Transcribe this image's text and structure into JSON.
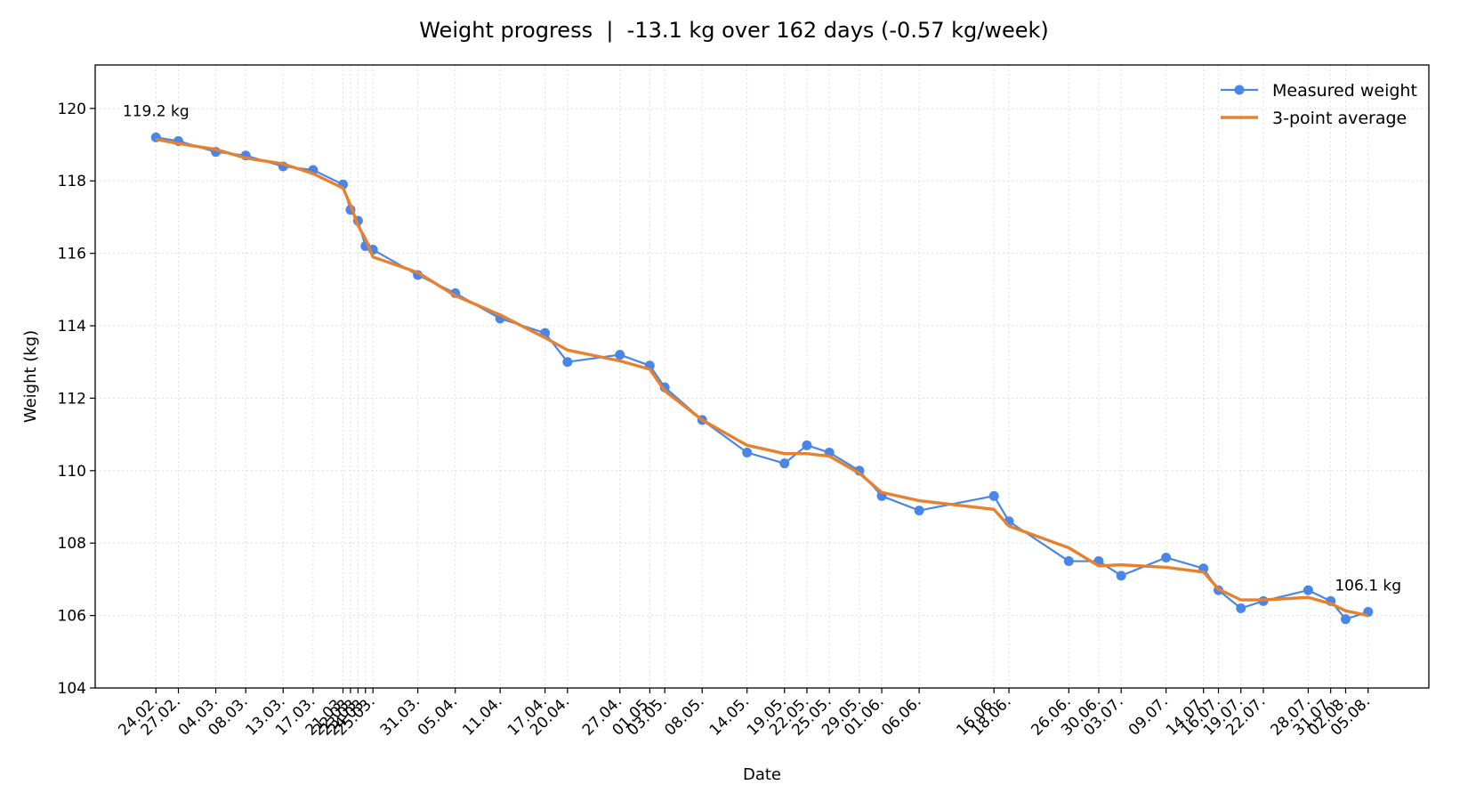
{
  "chart_data": {
    "type": "line",
    "title": "Weight progress  |  -13.1 kg over 162 days (-0.57 kg/week)",
    "xlabel": "Date",
    "ylabel": "Weight (kg)",
    "ylim": [
      104,
      121.2
    ],
    "yticks": [
      104,
      106,
      108,
      110,
      112,
      114,
      116,
      118,
      120
    ],
    "grid": true,
    "legend_position": "top-right",
    "colors": {
      "measured": "#4a86e8",
      "average": "#e8812e"
    },
    "x": [
      "24.02.",
      "27.02.",
      "04.03.",
      "08.03.",
      "13.03.",
      "17.03.",
      "21.03.",
      "22.03.",
      "23.03.",
      "24.03.",
      "25.03.",
      "31.03.",
      "05.04.",
      "11.04.",
      "17.04.",
      "20.04.",
      "27.04.",
      "01.05.",
      "03.05.",
      "08.05.",
      "14.05.",
      "19.05.",
      "22.05.",
      "25.05.",
      "29.05.",
      "01.06.",
      "06.06.",
      "16.06.",
      "18.06.",
      "26.06.",
      "30.06.",
      "03.07.",
      "09.07.",
      "14.07.",
      "16.07.",
      "19.07.",
      "22.07.",
      "28.07.",
      "31.07.",
      "02.08.",
      "05.08."
    ],
    "x_day": [
      0,
      3,
      8,
      12,
      17,
      21,
      25,
      26,
      27,
      28,
      29,
      35,
      40,
      46,
      52,
      55,
      62,
      66,
      68,
      73,
      79,
      84,
      87,
      90,
      94,
      97,
      102,
      112,
      114,
      122,
      126,
      129,
      135,
      140,
      142,
      145,
      148,
      154,
      157,
      159,
      162
    ],
    "x_tick_labels": [
      "24.02.",
      "27.02.",
      "04.03.",
      "08.03.",
      "13.03.",
      "17.03.",
      "21.03.",
      "22.03.",
      "23.03.",
      "24.03.",
      "25.03.",
      "31.03.",
      "05.04.",
      "11.04.",
      "17.04.",
      "20.04.",
      "27.04.",
      "01.05.",
      "03.05.",
      "08.05.",
      "14.05.",
      "19.05.",
      "22.05.",
      "25.05.",
      "29.05.",
      "01.06.",
      "06.06.",
      "16.06.",
      "18.06.",
      "26.06.",
      "30.06.",
      "03.07.",
      "09.07.",
      "14.07.",
      "16.07.",
      "19.07.",
      "22.07.",
      "28.07.",
      "31.07.",
      "02.08.",
      "05.08."
    ],
    "series": [
      {
        "name": "Measured weight",
        "values": [
          119.2,
          119.1,
          118.8,
          118.7,
          118.4,
          118.3,
          117.9,
          117.2,
          116.9,
          116.2,
          116.1,
          115.4,
          114.9,
          114.2,
          113.8,
          113.0,
          113.2,
          112.9,
          112.3,
          111.4,
          110.5,
          110.2,
          110.7,
          110.5,
          110.0,
          109.3,
          108.9,
          109.3,
          108.6,
          107.5,
          107.5,
          107.1,
          107.6,
          107.3,
          106.7,
          106.2,
          106.4,
          106.7,
          106.4,
          105.9,
          106.1
        ]
      },
      {
        "name": "3-point average",
        "values": [
          119.15,
          119.03,
          118.87,
          118.63,
          118.47,
          118.2,
          117.8,
          117.33,
          116.77,
          116.4,
          115.9,
          115.47,
          114.83,
          114.3,
          113.67,
          113.33,
          113.03,
          112.8,
          112.2,
          111.4,
          110.7,
          110.47,
          110.47,
          110.4,
          109.93,
          109.4,
          109.17,
          108.93,
          108.47,
          107.87,
          107.37,
          107.4,
          107.33,
          107.2,
          106.73,
          106.43,
          106.43,
          106.5,
          106.33,
          106.13,
          106.0
        ]
      }
    ],
    "annotations": [
      {
        "text": "119.2 kg",
        "x": "24.02.",
        "y": 119.2
      },
      {
        "text": "106.1 kg",
        "x": "05.08.",
        "y": 106.1
      }
    ]
  }
}
